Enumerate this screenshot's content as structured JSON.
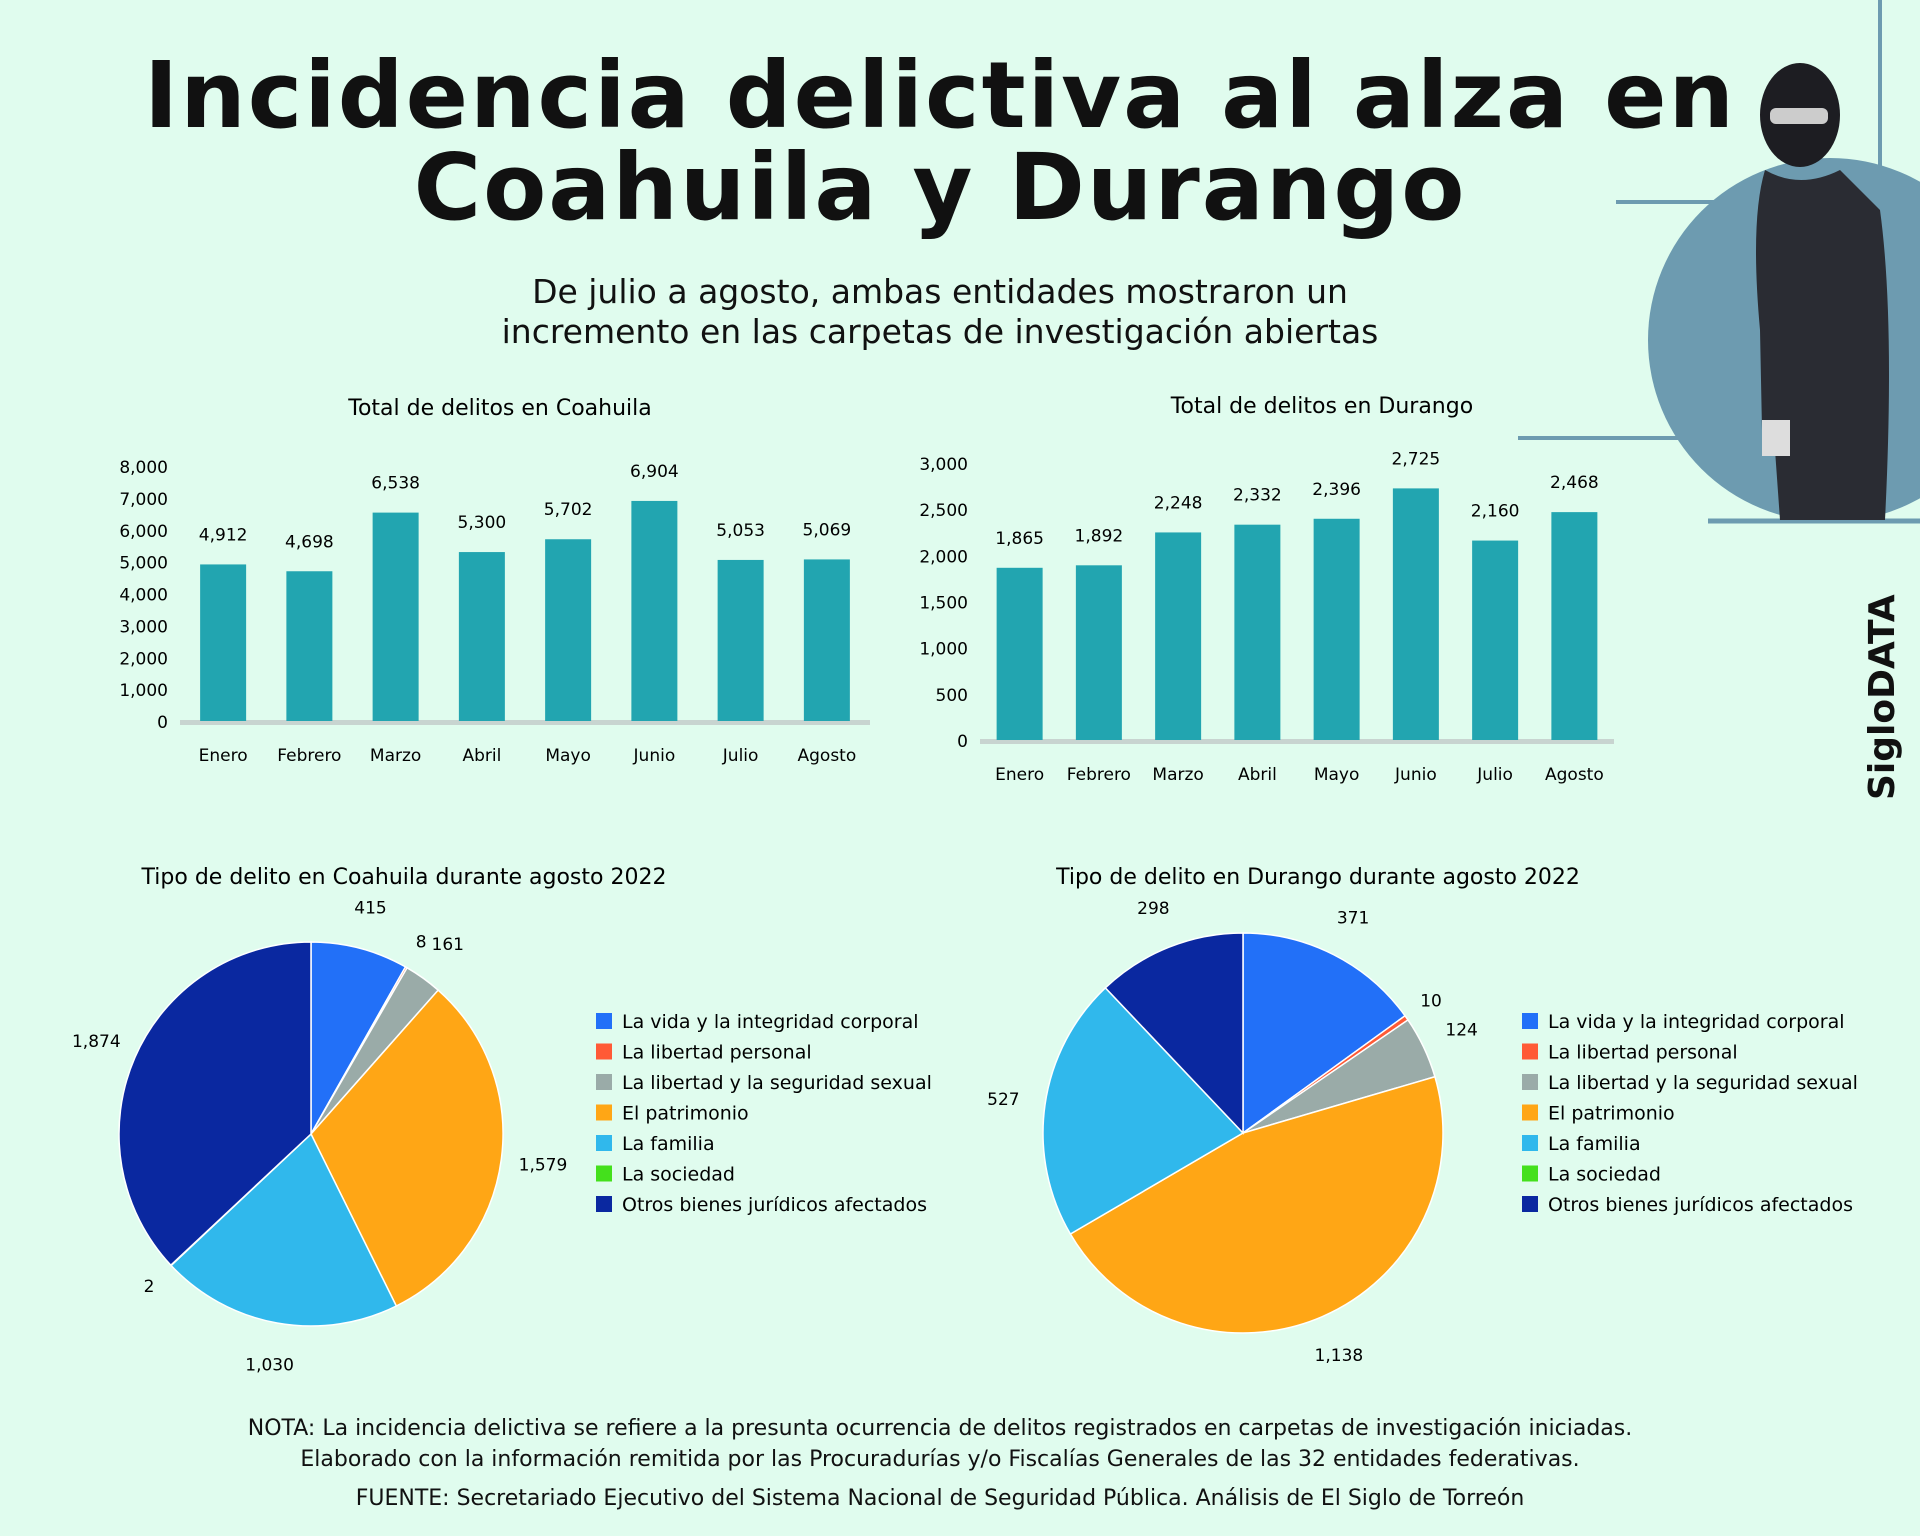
{
  "title_line1": "Incidencia delictiva al alza en",
  "title_line2": "Coahuila y Durango",
  "subtitle_line1": "De julio a agosto, ambas entidades mostraron un",
  "subtitle_line2": "incremento en las carpetas de investigación abiertas",
  "brand": "SigloDATA",
  "colors": {
    "background": "#e0fcee",
    "bar": "#22a5b0",
    "circle": "#6d9bb0"
  },
  "chart_data": [
    {
      "type": "bar",
      "title": "Total de delitos en Coahuila",
      "categories": [
        "Enero",
        "Febrero",
        "Marzo",
        "Abril",
        "Mayo",
        "Junio",
        "Julio",
        "Agosto"
      ],
      "values": [
        4912,
        4698,
        6538,
        5300,
        5702,
        6904,
        5053,
        5069
      ],
      "value_labels": [
        "4,912",
        "4,698",
        "6,538",
        "5,300",
        "5,702",
        "6,904",
        "5,053",
        "5,069"
      ],
      "ylim": [
        0,
        8000
      ],
      "yticks": [
        "0",
        "1,000",
        "2,000",
        "3,000",
        "4,000",
        "5,000",
        "6,000",
        "7,000",
        "8,000"
      ],
      "grid": false
    },
    {
      "type": "bar",
      "title": "Total de delitos en Durango",
      "categories": [
        "Enero",
        "Febrero",
        "Marzo",
        "Abril",
        "Mayo",
        "Junio",
        "Julio",
        "Agosto"
      ],
      "values": [
        1865,
        1892,
        2248,
        2332,
        2396,
        2725,
        2160,
        2468
      ],
      "value_labels": [
        "1,865",
        "1,892",
        "2,248",
        "2,332",
        "2,396",
        "2,725",
        "2,160",
        "2,468"
      ],
      "ylim": [
        0,
        3000
      ],
      "yticks": [
        "0",
        "500",
        "1,000",
        "1,500",
        "2,000",
        "2,500",
        "3,000"
      ],
      "grid": false
    },
    {
      "type": "pie",
      "title": "Tipo de delito en Coahuila durante agosto 2022",
      "legend_position": "right",
      "labels": [
        "La vida y la integridad corporal",
        "La libertad personal",
        "La libertad y la seguridad sexual",
        "El patrimonio",
        "La familia",
        "La sociedad",
        "Otros bienes jurídicos afectados"
      ],
      "values": [
        415,
        8,
        161,
        1579,
        1030,
        2,
        1874
      ],
      "value_labels": [
        "415",
        "8",
        "161",
        "1,579",
        "1,030",
        "2",
        "1,874"
      ],
      "colors": [
        "#2270f8",
        "#ff5a36",
        "#9aaba8",
        "#ffa615",
        "#30b8ec",
        "#44e01c",
        "#0a28a0"
      ]
    },
    {
      "type": "pie",
      "title": "Tipo de delito en Durango durante agosto 2022",
      "legend_position": "right",
      "labels": [
        "La vida y la integridad corporal",
        "La libertad personal",
        "La libertad y la seguridad sexual",
        "El patrimonio",
        "La familia",
        "La sociedad",
        "Otros bienes jurídicos afectados"
      ],
      "values": [
        371,
        10,
        124,
        1138,
        527,
        0,
        298
      ],
      "value_labels": [
        "371",
        "10",
        "124",
        "1,138",
        "527",
        "",
        "298"
      ],
      "colors": [
        "#2270f8",
        "#ff5a36",
        "#9aaba8",
        "#ffa615",
        "#30b8ec",
        "#44e01c",
        "#0a28a0"
      ]
    }
  ],
  "notes": {
    "line1": "NOTA: La incidencia delictiva se refiere a la presunta ocurrencia de delitos registrados en carpetas de investigación iniciadas.",
    "line2": "Elaborado con la información remitida por las Procuradurías y/o Fiscalías Generales de las 32 entidades federativas.",
    "source": "FUENTE: Secretariado Ejecutivo del Sistema Nacional de Seguridad Pública. Análisis de El Siglo de Torreón"
  }
}
